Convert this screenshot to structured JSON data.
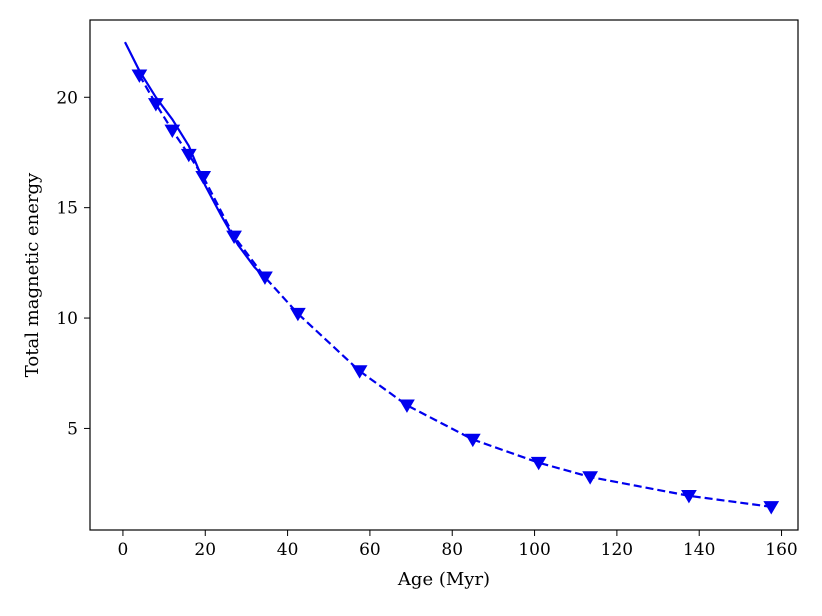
{
  "chart_data": {
    "type": "line",
    "title": "",
    "xlabel": "Age (Myr)",
    "ylabel": "Total magnetic energy",
    "xlim": [
      -8,
      164
    ],
    "ylim": [
      0.4,
      23.5
    ],
    "xticks": [
      0,
      20,
      40,
      60,
      80,
      100,
      120,
      140,
      160
    ],
    "yticks": [
      5,
      10,
      15,
      20
    ],
    "grid": false,
    "legend": "none",
    "color": "#0000ee",
    "series": [
      {
        "style": "solid",
        "marker": "none",
        "x": [
          0.5,
          4,
          8,
          12,
          16,
          20,
          24,
          28,
          32,
          35
        ],
        "y": [
          22.5,
          21.2,
          20.0,
          19.0,
          17.8,
          16.0,
          14.6,
          13.3,
          12.3,
          11.7
        ]
      },
      {
        "style": "dashed",
        "marker": "triangle-down",
        "x": [
          4,
          8,
          12,
          16,
          19.5,
          27,
          34.5,
          42.5,
          57.5,
          69,
          85,
          101,
          113.5,
          137.5,
          157.5
        ],
        "y": [
          21.0,
          19.7,
          18.5,
          17.4,
          16.4,
          13.7,
          11.85,
          10.2,
          7.6,
          6.05,
          4.5,
          3.45,
          2.8,
          1.95,
          1.45
        ]
      }
    ]
  }
}
